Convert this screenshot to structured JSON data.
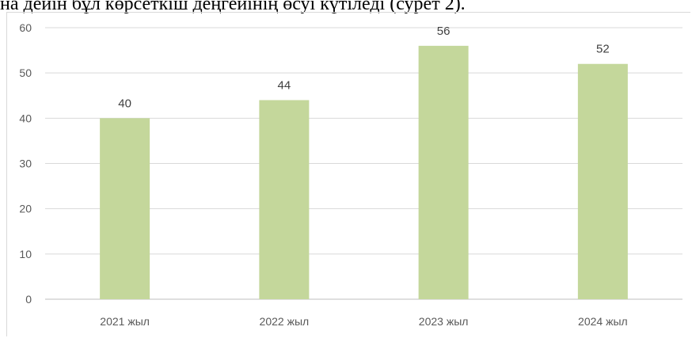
{
  "document": {
    "caption_fragment": "на дейін бұл көрсеткіш деңгейінің өсуі күтіледі (сурет 2)."
  },
  "colors": {
    "bar": "#c4d79b",
    "grid": "#d9d9d9",
    "axis": "#bfbfbf",
    "tick_text": "#595959",
    "label_text": "#404040"
  },
  "chart_data": {
    "type": "bar",
    "categories": [
      "2021 жыл",
      "2022 жыл",
      "2023 жыл",
      "2024 жыл"
    ],
    "values": [
      40,
      44,
      56,
      52
    ],
    "data_labels": [
      "40",
      "44",
      "56",
      "52"
    ],
    "title": "",
    "xlabel": "",
    "ylabel": "",
    "ylim": [
      0,
      60
    ],
    "yticks": [
      0,
      10,
      20,
      30,
      40,
      50,
      60
    ],
    "grid": true,
    "legend": "none"
  }
}
